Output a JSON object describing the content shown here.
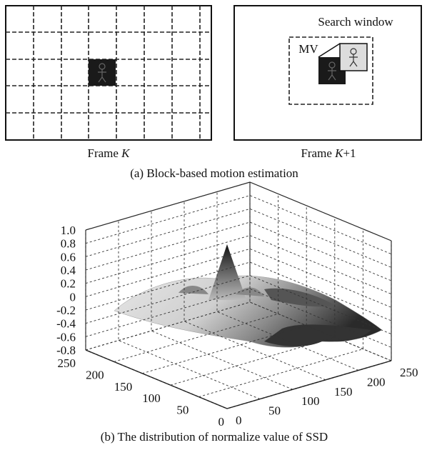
{
  "panel_a": {
    "frame_k": {
      "text": "Frame",
      "var": "K"
    },
    "frame_k1": {
      "text": "Frame",
      "var": "K",
      "suffix": "+1"
    },
    "search_window": "Search window",
    "mv": "MV",
    "caption": "(a) Block-based motion estimation"
  },
  "panel_b": {
    "z_ticks": [
      "1.0",
      "0.8",
      "0.6",
      "0.4",
      "0.2",
      "0",
      "-0.2",
      "-0.4",
      "-0.6",
      "-0.8"
    ],
    "y_ticks": [
      "250",
      "200",
      "150",
      "100",
      "50",
      "0"
    ],
    "x_ticks": [
      "0",
      "50",
      "100",
      "150",
      "200",
      "250"
    ],
    "caption": "(b) The distribution of normalize value of SSD"
  }
}
